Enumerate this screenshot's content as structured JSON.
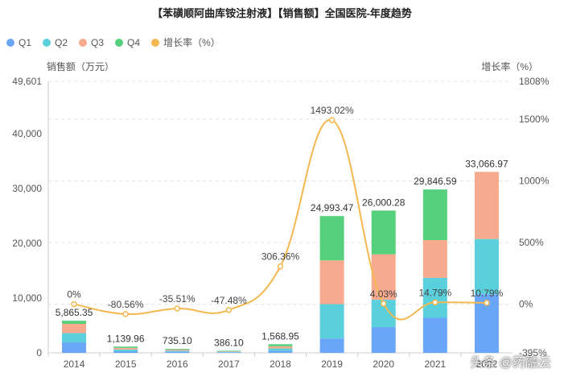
{
  "chart_data": {
    "type": "bar",
    "title": "【苯磺顺阿曲库铵注射液】【销售额】全国医院-年度趋势",
    "categories": [
      "2014",
      "2015",
      "2016",
      "2017",
      "2018",
      "2019",
      "2020",
      "2021",
      "2022"
    ],
    "series": [
      {
        "name": "Q1",
        "color": "#6aa6f8",
        "values": [
          1900,
          300,
          200,
          100,
          400,
          2600,
          4700,
          6400,
          10700
        ]
      },
      {
        "name": "Q2",
        "color": "#5bd0dd",
        "values": [
          1700,
          300,
          200,
          100,
          400,
          6300,
          5000,
          7300,
          10100
        ]
      },
      {
        "name": "Q3",
        "color": "#f7aa8e",
        "values": [
          1700,
          300,
          200,
          100,
          400,
          8000,
          8300,
          6900,
          12266.97
        ]
      },
      {
        "name": "Q4",
        "color": "#55d17e",
        "values": [
          565.35,
          239.96,
          135.1,
          86.1,
          368.95,
          8093.47,
          8000.28,
          9246.59,
          0
        ]
      }
    ],
    "totals": [
      5865.35,
      1139.96,
      735.1,
      386.1,
      1568.95,
      24993.47,
      26000.28,
      29846.59,
      33066.97
    ],
    "total_labels": [
      "5,865.35",
      "1,139.96",
      "735.10",
      "386.10",
      "1,568.95",
      "24,993.47",
      "26,000.28",
      "29,846.59",
      "33,066.97"
    ],
    "growth": {
      "name": "增长率（%）",
      "color": "#f3b84f",
      "values": [
        0,
        -80.56,
        -35.51,
        -47.48,
        306.36,
        1493.02,
        4.03,
        14.79,
        10.79
      ],
      "labels": [
        "0%",
        "-80.56%",
        "-35.51%",
        "-47.48%",
        "306.36%",
        "1493.02%",
        "4.03%",
        "14.79%",
        "10.79%"
      ]
    },
    "ylabel": "销售额（万元）",
    "y2label": "增长率（%）",
    "ylim": [
      0,
      49601
    ],
    "y_ticks": [
      0,
      10000,
      20000,
      30000,
      40000,
      49601
    ],
    "y_tick_labels": [
      "0",
      "10,000",
      "20,000",
      "30,000",
      "40,000",
      "49,601"
    ],
    "y2lim": [
      -395,
      1808
    ],
    "y2_ticks": [
      -395,
      0,
      500,
      1000,
      1500,
      1808
    ],
    "y2_tick_labels": [
      "-395%",
      "0%",
      "500%",
      "1000%",
      "1500%",
      "1808%"
    ],
    "grid": true,
    "legend_position": "top-left"
  },
  "watermark": "头条 @药融云"
}
